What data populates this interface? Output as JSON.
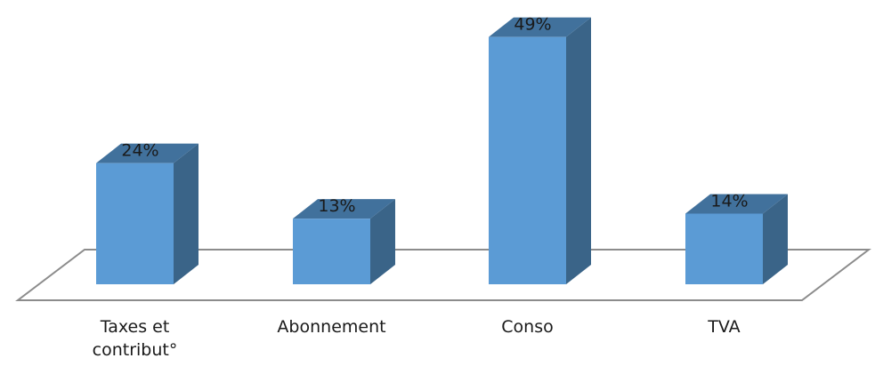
{
  "chart_data": {
    "type": "bar",
    "style": "3d-column",
    "categories": [
      "Taxes et\ncontribut°",
      "Abonnement",
      "Conso",
      "TVA"
    ],
    "values": [
      24,
      13,
      49,
      14
    ],
    "data_labels": [
      "24%",
      "13%",
      "49%",
      "14%"
    ],
    "unit": "%",
    "ylim": [
      0,
      50
    ],
    "grid": false,
    "legend": "none",
    "colors": {
      "front": "#5b9bd5",
      "top": "#41719c",
      "side": "#3a6488",
      "floor_stroke": "#8c8c8c"
    }
  }
}
